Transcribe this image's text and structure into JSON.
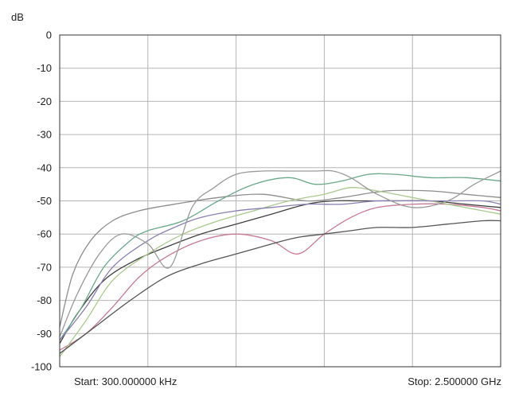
{
  "chart_data": {
    "type": "line",
    "ylabel": "dB",
    "ylim": [
      -100,
      0
    ],
    "yticks": [
      0,
      -10,
      -20,
      -30,
      -40,
      -50,
      -60,
      -70,
      -80,
      -90,
      -100
    ],
    "xlim": [
      0,
      5
    ],
    "x_gridlines": [
      1,
      2,
      3,
      4
    ],
    "grid": true,
    "start_label": "Start: 300.000000 kHz",
    "stop_label": "Stop: 2.500000 GHz",
    "line_colors": {
      "grey": "#8c8c8c",
      "dark": "#404040",
      "green": "#6aa88a",
      "pink": "#c77a93",
      "lightgreen": "#a9c98e",
      "purple": "#8a7fb0",
      "darkgrey": "#555555",
      "midgrey": "#9a9a9a"
    },
    "series": [
      {
        "color": "grey",
        "x": [
          0,
          0.15,
          0.35,
          0.6,
          0.9,
          1.3,
          1.8,
          2.3,
          2.8,
          3.2,
          3.7,
          4.2,
          4.6,
          5.0
        ],
        "y": [
          -88,
          -72,
          -62,
          -56,
          -53,
          -51,
          -49,
          -48,
          -50,
          -49,
          -47,
          -47,
          -48,
          -49
        ]
      },
      {
        "color": "dark",
        "x": [
          0,
          0.2,
          0.5,
          0.85,
          1.2,
          1.6,
          2.0,
          2.4,
          2.8,
          3.1,
          3.4,
          3.8,
          4.2,
          4.6,
          5.0
        ],
        "y": [
          -93,
          -84,
          -74,
          -68,
          -64,
          -60,
          -57,
          -54,
          -51,
          -50,
          -50,
          -50,
          -50,
          -51,
          -52
        ]
      },
      {
        "color": "green",
        "x": [
          0,
          0.25,
          0.5,
          0.8,
          1.0,
          1.4,
          1.8,
          2.2,
          2.6,
          2.9,
          3.2,
          3.5,
          3.8,
          4.2,
          4.6,
          5.0
        ],
        "y": [
          -92,
          -82,
          -70,
          -62,
          -59,
          -56,
          -50,
          -45,
          -43,
          -45,
          -44,
          -42,
          -42,
          -43,
          -43,
          -44
        ]
      },
      {
        "color": "pink",
        "x": [
          0,
          0.3,
          0.6,
          0.9,
          1.2,
          1.6,
          2.0,
          2.4,
          2.7,
          3.0,
          3.3,
          3.6,
          4.0,
          4.4,
          4.8,
          5.0
        ],
        "y": [
          -95,
          -90,
          -82,
          -73,
          -67,
          -62,
          -60,
          -62,
          -66,
          -60,
          -55,
          -52,
          -51,
          -51,
          -52,
          -53
        ]
      },
      {
        "color": "lightgreen",
        "x": [
          0,
          0.3,
          0.6,
          1.0,
          1.4,
          1.8,
          2.2,
          2.6,
          3.0,
          3.3,
          3.6,
          4.0,
          4.4,
          4.8,
          5.0
        ],
        "y": [
          -97,
          -86,
          -74,
          -66,
          -60,
          -56,
          -53,
          -50,
          -48,
          -46,
          -47,
          -49,
          -51,
          -53,
          -54
        ]
      },
      {
        "color": "purple",
        "x": [
          0,
          0.3,
          0.6,
          1.0,
          1.3,
          1.6,
          2.0,
          2.4,
          2.8,
          3.2,
          3.6,
          4.0,
          4.4,
          4.8,
          5.0
        ],
        "y": [
          -92,
          -82,
          -70,
          -62,
          -58,
          -55,
          -53,
          -52,
          -51,
          -51,
          -50,
          -50,
          -50,
          -50,
          -51
        ]
      },
      {
        "color": "darkgrey",
        "x": [
          0,
          0.4,
          0.8,
          1.2,
          1.6,
          2.0,
          2.4,
          2.7,
          3.0,
          3.3,
          3.6,
          4.0,
          4.4,
          4.8,
          5.0
        ],
        "y": [
          -96,
          -88,
          -80,
          -73,
          -69,
          -66,
          -63,
          -61,
          -60,
          -59,
          -58,
          -58,
          -57,
          -56,
          -56
        ]
      },
      {
        "color": "midgrey",
        "x": [
          0,
          0.2,
          0.45,
          0.7,
          1.0,
          1.25,
          1.5,
          1.75,
          2.0,
          2.3,
          2.6,
          2.9,
          3.1,
          3.3,
          3.6,
          4.0,
          4.4,
          4.7,
          5.0
        ],
        "y": [
          -91,
          -78,
          -66,
          -60,
          -63,
          -70,
          -52,
          -46,
          -42,
          -41,
          -41,
          -41,
          -41,
          -43,
          -48,
          -52,
          -50,
          -45,
          -41
        ]
      }
    ]
  }
}
